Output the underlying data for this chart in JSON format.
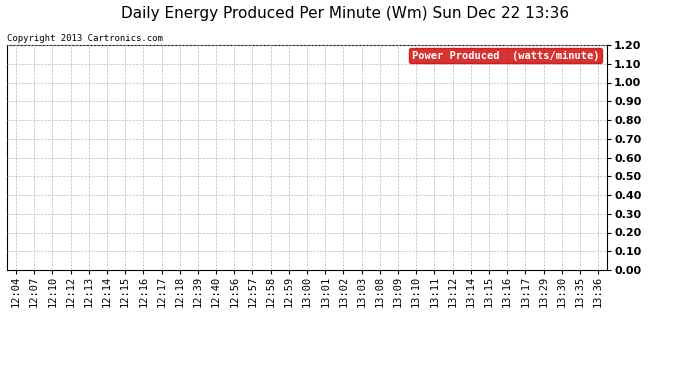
{
  "title": "Daily Energy Produced Per Minute (Wm) Sun Dec 22 13:36",
  "copyright_text": "Copyright 2013 Cartronics.com",
  "legend_label": "Power Produced  (watts/minute)",
  "legend_bg": "#cc0000",
  "legend_text_color": "#ffffff",
  "background_color": "#ffffff",
  "plot_bg_color": "#ffffff",
  "grid_color": "#bbbbbb",
  "y_min": 0.0,
  "y_max": 1.2,
  "y_ticks": [
    0.0,
    0.1,
    0.2,
    0.3,
    0.4,
    0.5,
    0.6,
    0.7,
    0.8,
    0.9,
    1.0,
    1.1,
    1.2
  ],
  "x_labels": [
    "12:04",
    "12:07",
    "12:10",
    "12:12",
    "12:13",
    "12:14",
    "12:15",
    "12:16",
    "12:17",
    "12:18",
    "12:39",
    "12:40",
    "12:56",
    "12:57",
    "12:58",
    "12:59",
    "13:00",
    "13:01",
    "13:02",
    "13:03",
    "13:08",
    "13:09",
    "13:10",
    "13:11",
    "13:12",
    "13:14",
    "13:15",
    "13:16",
    "13:17",
    "13:29",
    "13:30",
    "13:35",
    "13:36"
  ],
  "title_fontsize": 11,
  "copyright_fontsize": 6.5,
  "tick_fontsize": 7.5,
  "ytick_fontsize": 8,
  "legend_fontsize": 7.5,
  "border_color": "#000000"
}
